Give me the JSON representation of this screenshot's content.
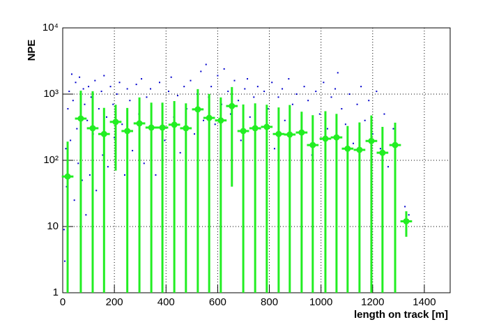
{
  "chart_data": {
    "type": "scatter-profile",
    "x_label": "length on track [m]",
    "y_label": "NPE",
    "xlim": [
      0,
      1500
    ],
    "ylim": [
      1,
      10000
    ],
    "log_y": true,
    "grid": true,
    "xticks": [
      0,
      200,
      400,
      600,
      800,
      1000,
      1200,
      1400
    ],
    "yticks": [
      {
        "value": 1,
        "label": "1"
      },
      10,
      {
        "value": 100,
        "label": "10²"
      },
      {
        "value": 1000,
        "label": "10³"
      },
      {
        "value": 10000,
        "label": "10⁴"
      }
    ],
    "scatter": {
      "color": "#0000cc",
      "x": [
        5,
        8,
        12,
        15,
        20,
        25,
        30,
        35,
        40,
        45,
        50,
        55,
        60,
        65,
        70,
        75,
        80,
        85,
        90,
        95,
        100,
        105,
        110,
        118,
        125,
        130,
        140,
        150,
        155,
        160,
        170,
        175,
        185,
        195,
        200,
        210,
        220,
        230,
        240,
        250,
        260,
        270,
        285,
        295,
        305,
        315,
        325,
        340,
        350,
        360,
        375,
        385,
        395,
        410,
        420,
        430,
        445,
        455,
        470,
        480,
        495,
        510,
        520,
        535,
        545,
        555,
        565,
        575,
        590,
        600,
        615,
        625,
        640,
        650,
        665,
        680,
        690,
        705,
        715,
        725,
        740,
        755,
        765,
        780,
        795,
        810,
        820,
        835,
        850,
        860,
        875,
        890,
        905,
        920,
        935,
        950,
        965,
        980,
        995,
        1010,
        1025,
        1040,
        1055,
        1065,
        1080,
        1095,
        1110,
        1125,
        1140,
        1155,
        1170,
        1185,
        1200,
        1215,
        1230,
        1245,
        1260,
        1280,
        1325,
        1340
      ],
      "y": [
        9,
        3,
        150,
        40,
        600,
        1100,
        200,
        2000,
        800,
        25,
        1500,
        300,
        90,
        1800,
        500,
        50,
        1200,
        700,
        15,
        400,
        1300,
        60,
        900,
        250,
        1600,
        35,
        600,
        1100,
        120,
        1900,
        450,
        80,
        1300,
        700,
        220,
        1000,
        1500,
        350,
        60,
        1200,
        800,
        140,
        1400,
        500,
        1700,
        90,
        900,
        1200,
        300,
        60,
        1500,
        700,
        200,
        1100,
        1800,
        450,
        950,
        130,
        1300,
        600,
        1600,
        250,
        1000,
        2200,
        400,
        2800,
        900,
        1300,
        350,
        1900,
        700,
        2400,
        1100,
        500,
        1600,
        800,
        200,
        1200,
        1700,
        450,
        900,
        1300,
        300,
        1100,
        600,
        1500,
        150,
        900,
        1200,
        400,
        1700,
        700,
        1000,
        250,
        1300,
        800,
        120,
        1100,
        500,
        1500,
        300,
        900,
        1200,
        2100,
        600,
        350,
        1000,
        180,
        700,
        1300,
        400,
        800,
        250,
        1100,
        150,
        500,
        80,
        300,
        20,
        15
      ]
    },
    "profile": {
      "color": "#22ee22",
      "xerr": 22.5,
      "x": [
        19,
        70,
        116,
        160,
        205,
        250,
        297,
        343,
        386,
        432,
        477,
        523,
        567,
        612,
        655,
        699,
        745,
        790,
        836,
        879,
        925,
        968,
        1017,
        1060,
        1103,
        1149,
        1195,
        1238,
        1287,
        1330
      ],
      "values": [
        57,
        427,
        305,
        250,
        380,
        277,
        361,
        312,
        312,
        345,
        305,
        588,
        437,
        400,
        660,
        277,
        305,
        320,
        250,
        245,
        263,
        170,
        212,
        222,
        150,
        144,
        196,
        130,
        170,
        12
      ],
      "errors": [
        135,
        700,
        800,
        370,
        310,
        340,
        530,
        430,
        430,
        440,
        420,
        600,
        570,
        490,
        620,
        420,
        420,
        370,
        380,
        440,
        280,
        310,
        340,
        280,
        180,
        230,
        280,
        190,
        200,
        5
      ]
    }
  }
}
